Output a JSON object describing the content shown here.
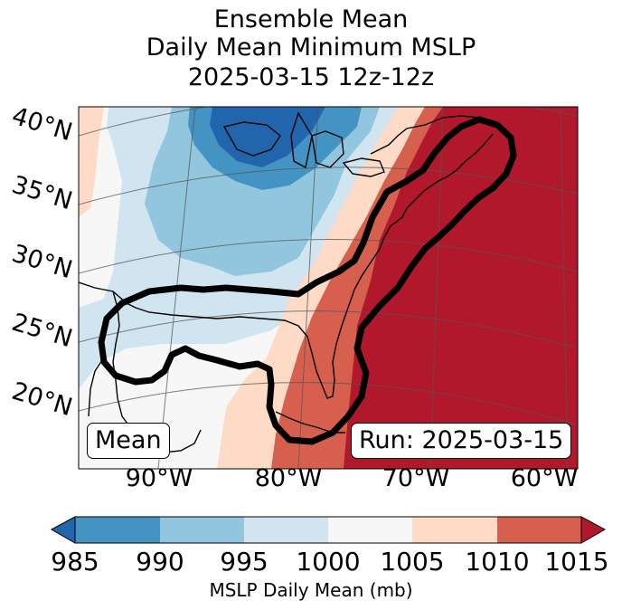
{
  "title": {
    "line1": "Ensemble Mean",
    "line2": "Daily Mean Minimum MSLP",
    "line3": "2025-03-15 12z-12z"
  },
  "map": {
    "lat_labels": [
      "40°N",
      "35°N",
      "30°N",
      "25°N",
      "20°N"
    ],
    "lon_labels": [
      "90°W",
      "80°W",
      "70°W",
      "60°W"
    ],
    "mean_box": "Mean",
    "run_box": "Run: 2025-03-15",
    "contour_color": "#000000"
  },
  "colorbar": {
    "label": "MSLP Daily Mean (mb)",
    "ticks": [
      "985",
      "990",
      "995",
      "1000",
      "1005",
      "1010",
      "1015"
    ],
    "bins": [
      {
        "range": "<985",
        "color": "#2166ac"
      },
      {
        "range": "985-990",
        "color": "#4393c3"
      },
      {
        "range": "990-995",
        "color": "#92c5de"
      },
      {
        "range": "995-1000",
        "color": "#d1e5f0"
      },
      {
        "range": "1000-1005",
        "color": "#f7f7f7"
      },
      {
        "range": "1005-1010",
        "color": "#fddbc7"
      },
      {
        "range": "1010-1015",
        "color": "#d6604d"
      },
      {
        "range": ">1015",
        "color": "#b2182b"
      }
    ]
  }
}
